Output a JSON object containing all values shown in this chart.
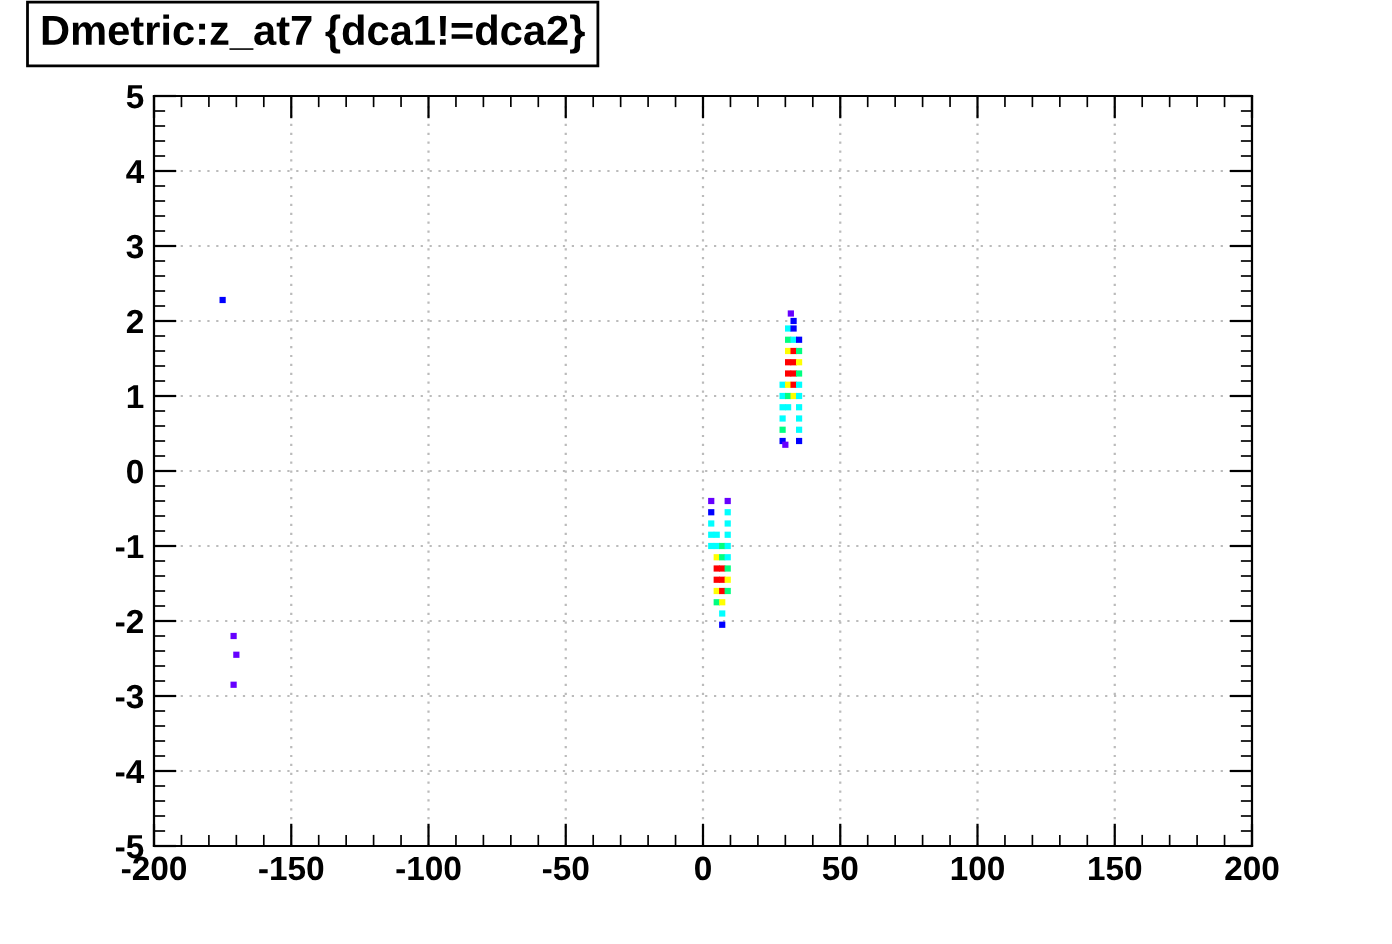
{
  "chart_data": {
    "type": "scatter",
    "title": "Dmetric:z_at7 {dca1!=dca2}",
    "marker": "square",
    "grid": true,
    "xlim": [
      -200,
      200
    ],
    "xticks": [
      -200,
      -150,
      -100,
      -50,
      0,
      50,
      100,
      150,
      200
    ],
    "ylim": [
      -5,
      5
    ],
    "yticks": [
      -5,
      -4,
      -3,
      -2,
      -1,
      0,
      1,
      2,
      3,
      4,
      5
    ],
    "series": [
      {
        "x": [
          32,
          33,
          31,
          33,
          31,
          33,
          35,
          31,
          33,
          35,
          31,
          33,
          35,
          31,
          33,
          35,
          29,
          31,
          33,
          35,
          29,
          31,
          33,
          35,
          29,
          31,
          35,
          29,
          35,
          29,
          35,
          29,
          35,
          30,
          3,
          9,
          3,
          9,
          3,
          9,
          3,
          5,
          9,
          3,
          5,
          7,
          9,
          5,
          7,
          9,
          5,
          7,
          9,
          5,
          7,
          9,
          5,
          7,
          9,
          5,
          7,
          7,
          7,
          -175,
          -171,
          -170,
          -171
        ],
        "values": [
          2.1,
          2.0,
          1.9,
          1.9,
          1.75,
          1.75,
          1.75,
          1.6,
          1.6,
          1.6,
          1.45,
          1.45,
          1.45,
          1.3,
          1.3,
          1.3,
          1.15,
          1.15,
          1.15,
          1.15,
          1.0,
          1.0,
          1.0,
          1.0,
          0.85,
          0.85,
          0.85,
          0.7,
          0.7,
          0.55,
          0.55,
          0.4,
          0.4,
          0.35,
          -0.4,
          -0.4,
          -0.55,
          -0.55,
          -0.7,
          -0.7,
          -0.85,
          -0.85,
          -0.85,
          -1.0,
          -1.0,
          -1.0,
          -1.0,
          -1.15,
          -1.15,
          -1.15,
          -1.3,
          -1.3,
          -1.3,
          -1.45,
          -1.45,
          -1.45,
          -1.6,
          -1.6,
          -1.6,
          -1.75,
          -1.75,
          -1.9,
          -2.05,
          2.28,
          -2.2,
          -2.45,
          -2.85
        ],
        "colors": [
          "#6600ff",
          "#0000ff",
          "#00ffff",
          "#0000ff",
          "#00ff80",
          "#00ffff",
          "#0000ff",
          "#ffff00",
          "#ff0000",
          "#00ff80",
          "#ff0000",
          "#ff0000",
          "#ffff00",
          "#ff0000",
          "#ff0000",
          "#00ff80",
          "#00ffff",
          "#ffff00",
          "#ff0000",
          "#00ffff",
          "#00ffff",
          "#00ff80",
          "#ffff00",
          "#00ffff",
          "#00ffff",
          "#00ffff",
          "#00ffff",
          "#00ffff",
          "#00ffff",
          "#00ff80",
          "#00ffff",
          "#0000ff",
          "#0000ff",
          "#6600ff",
          "#6600ff",
          "#6600ff",
          "#0000ff",
          "#00ffff",
          "#00ffff",
          "#00ffff",
          "#00ffff",
          "#00ffff",
          "#00ffff",
          "#00ffff",
          "#00ffff",
          "#00ff80",
          "#00ffff",
          "#ffff00",
          "#00ff80",
          "#00ffff",
          "#ff0000",
          "#ff0000",
          "#00ff80",
          "#ff0000",
          "#ff0000",
          "#ffff00",
          "#ffff00",
          "#ff0000",
          "#00ff80",
          "#00ff80",
          "#ffff00",
          "#00ffff",
          "#0000ff",
          "#0000ff",
          "#6600ff",
          "#6600ff",
          "#6600ff"
        ]
      }
    ]
  }
}
